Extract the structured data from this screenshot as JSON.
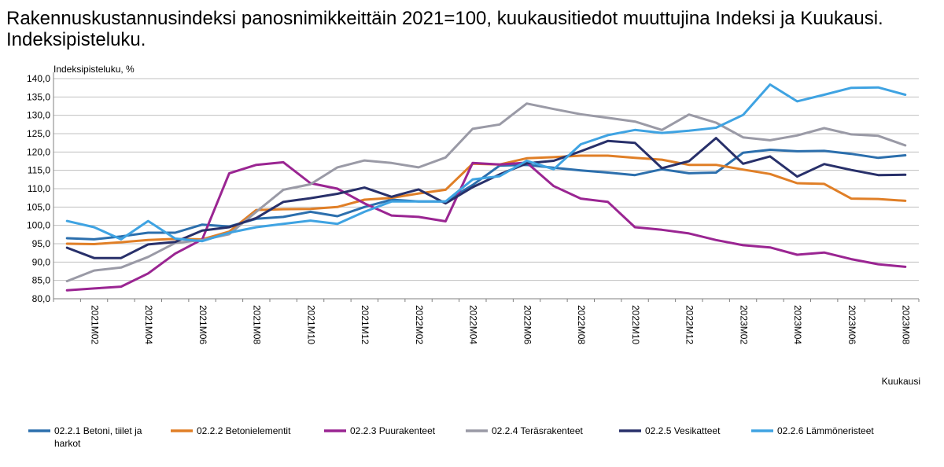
{
  "chart_data": {
    "type": "line",
    "title": "Rakennuskustannusindeksi panosnimikkeittäin 2021=100, kuukausitiedot muuttujina Indeksi ja Kuukausi. Indeksipisteluku.",
    "ylabel": "Indeksipisteluku, %",
    "xlabel": "Kuukausi",
    "ylim": [
      80,
      140
    ],
    "yticks": [
      "80,0",
      "85,0",
      "90,0",
      "95,0",
      "100,0",
      "105,0",
      "110,0",
      "115,0",
      "120,0",
      "125,0",
      "130,0",
      "135,0",
      "140,0"
    ],
    "grid": true,
    "legend_position": "bottom",
    "x": [
      "2021M01",
      "2021M02",
      "2021M03",
      "2021M04",
      "2021M05",
      "2021M06",
      "2021M07",
      "2021M08",
      "2021M09",
      "2021M10",
      "2021M11",
      "2021M12",
      "2022M01",
      "2022M02",
      "2022M03",
      "2022M04",
      "2022M05",
      "2022M06",
      "2022M07",
      "2022M08",
      "2022M09",
      "2022M10",
      "2022M11",
      "2022M12",
      "2023M01",
      "2023M02",
      "2023M03",
      "2023M04",
      "2023M05",
      "2023M06",
      "2023M07",
      "2023M08"
    ],
    "x_tick_labels": [
      "2021M02",
      "2021M04",
      "2021M06",
      "2021M08",
      "2021M10",
      "2021M12",
      "2022M02",
      "2022M04",
      "2022M06",
      "2022M08",
      "2022M10",
      "2022M12",
      "2023M02",
      "2023M04",
      "2023M06",
      "2023M08"
    ],
    "series": [
      {
        "name": "02.2.1 Betoni, tiilet ja harkot",
        "color": "#2c6fad",
        "values": [
          96.5,
          96.2,
          97.0,
          98.0,
          98.0,
          100.2,
          99.7,
          101.8,
          102.3,
          103.7,
          102.5,
          105.0,
          107.0,
          106.5,
          106.5,
          111.0,
          116.3,
          116.5,
          115.7,
          115.0,
          114.4,
          113.7,
          115.3,
          114.2,
          114.4,
          119.8,
          120.6,
          120.2,
          120.3,
          119.5,
          118.4,
          119.1
        ]
      },
      {
        "name": "02.2.2 Betonielementit",
        "color": "#e07f27",
        "values": [
          95.0,
          94.9,
          95.4,
          96.0,
          96.3,
          96.2,
          98.3,
          104.2,
          104.4,
          104.5,
          105.0,
          107.0,
          107.5,
          108.7,
          109.7,
          116.8,
          116.6,
          118.3,
          118.6,
          119.0,
          119.0,
          118.4,
          117.9,
          116.5,
          116.5,
          115.2,
          114.0,
          111.5,
          111.3,
          107.3,
          107.2,
          106.7
        ]
      },
      {
        "name": "02.2.3 Puurakenteet",
        "color": "#9a2592",
        "values": [
          82.3,
          82.8,
          83.3,
          86.9,
          92.3,
          96.2,
          114.2,
          116.5,
          117.2,
          111.5,
          110.0,
          106.0,
          102.7,
          102.3,
          101.1,
          117.0,
          116.6,
          117.1,
          110.7,
          107.3,
          106.4,
          99.5,
          98.8,
          97.8,
          96.0,
          94.6,
          94.0,
          92.0,
          92.6,
          90.8,
          89.4,
          88.7
        ]
      },
      {
        "name": "02.2.4 Teräsrakenteet",
        "color": "#9a9aa6",
        "values": [
          84.8,
          87.7,
          88.5,
          91.4,
          95.2,
          96.0,
          97.6,
          103.7,
          109.7,
          111.2,
          115.8,
          117.7,
          117.0,
          115.8,
          118.5,
          126.3,
          127.5,
          133.2,
          131.7,
          130.3,
          129.3,
          128.3,
          126.0,
          130.2,
          128.0,
          124.0,
          123.2,
          124.5,
          126.5,
          124.8,
          124.4,
          121.8
        ]
      },
      {
        "name": "02.2.5 Vesikatteet",
        "color": "#28306a",
        "values": [
          93.9,
          91.1,
          91.1,
          94.8,
          95.5,
          98.6,
          99.5,
          102.0,
          106.4,
          107.4,
          108.6,
          110.3,
          107.8,
          109.8,
          106.0,
          110.4,
          113.9,
          116.9,
          117.6,
          120.2,
          123.0,
          122.5,
          115.6,
          117.5,
          123.8,
          116.8,
          118.8,
          113.3,
          116.7,
          115.1,
          113.7,
          113.8
        ]
      },
      {
        "name": "02.2.6 Lämmöneristeet",
        "color": "#3fa3e2",
        "values": [
          101.2,
          99.5,
          96.2,
          101.2,
          96.4,
          95.7,
          98.0,
          99.5,
          100.4,
          101.3,
          100.4,
          103.7,
          106.5,
          106.5,
          106.5,
          112.5,
          113.4,
          117.6,
          115.3,
          122.1,
          124.6,
          126.0,
          125.2,
          125.8,
          126.6,
          130.1,
          138.4,
          133.8,
          135.6,
          137.5,
          137.6,
          135.6
        ]
      }
    ]
  }
}
